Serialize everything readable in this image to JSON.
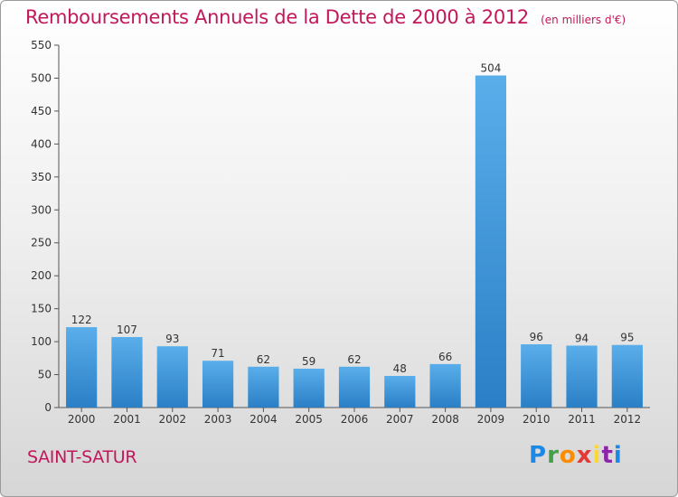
{
  "chart_data": {
    "type": "bar",
    "title": "Remboursements Annuels de la Dette de 2000 à 2012",
    "unit": "(en milliers d'€)",
    "categories": [
      "2000",
      "2001",
      "2002",
      "2003",
      "2004",
      "2005",
      "2006",
      "2007",
      "2008",
      "2009",
      "2010",
      "2011",
      "2012"
    ],
    "values": [
      122,
      107,
      93,
      71,
      62,
      59,
      62,
      48,
      66,
      504,
      96,
      94,
      95
    ],
    "ylim": [
      0,
      550
    ],
    "yticks": [
      0,
      50,
      100,
      150,
      200,
      250,
      300,
      350,
      400,
      450,
      500,
      550
    ],
    "grid": false,
    "bar_color": "#3a90d4",
    "title_color": "#c2185b"
  },
  "commune": "SAINT-SATUR",
  "brand": {
    "letters": [
      "P",
      "r",
      "o",
      "x",
      "i",
      "t",
      "i"
    ],
    "colors": [
      "#1e88e5",
      "#43a047",
      "#fb8c00",
      "#e53935",
      "#fdd835",
      "#8e24aa",
      "#1e88e5"
    ]
  }
}
